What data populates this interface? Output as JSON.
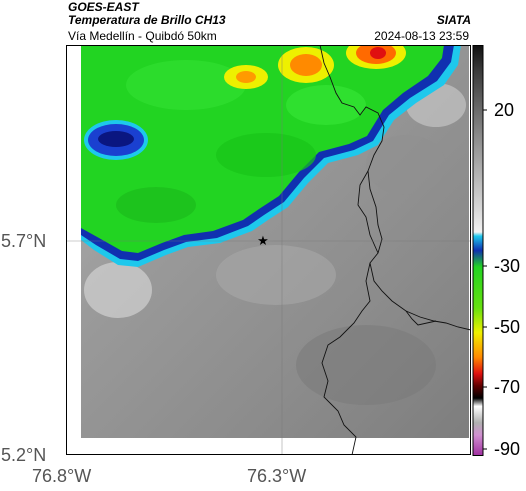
{
  "header": {
    "satellite": "GOES-EAST",
    "product": "Temperatura de Brillo CH13",
    "organization": "SIATA",
    "route": "Vía Medellín - Quibdó 50km",
    "datetime": "2024-08-13 23:59"
  },
  "map": {
    "lat_ticks": [
      "5.7°N",
      "5.2°N"
    ],
    "lon_ticks": [
      "76.8°W",
      "76.3°W"
    ],
    "marker_icon": "star-icon"
  },
  "colorbar": {
    "ticks": [
      "20",
      "-30",
      "-50",
      "-70",
      "-90"
    ],
    "colors": {
      "warm_gray": "#8a8a8a",
      "cyan": "#1ec8ec",
      "blue": "#1030b0",
      "green": "#22d422",
      "yellow": "#eef000",
      "orange": "#ff6a00",
      "red": "#e01010",
      "black": "#000000",
      "magenta": "#b040b0"
    }
  }
}
